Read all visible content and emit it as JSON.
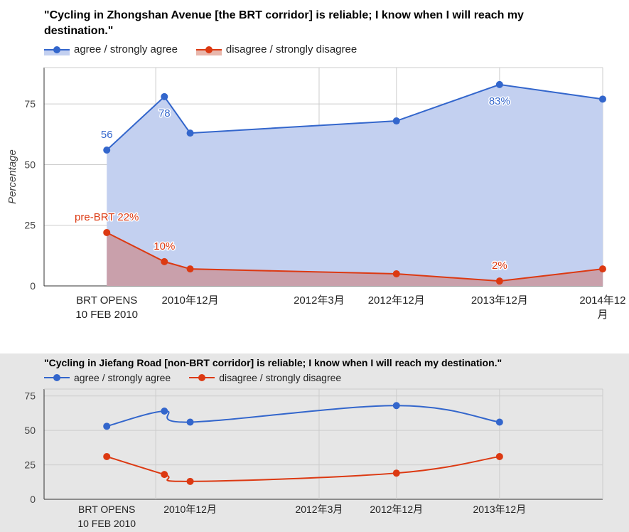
{
  "chart_data": [
    {
      "type": "area",
      "title": "\"Cycling in Zhongshan Avenue [the BRT corridor] is reliable; I know when I will reach my destination.\"",
      "ylabel": "Percentage",
      "ylim": [
        0,
        90
      ],
      "yticks": [
        0,
        25,
        50,
        75
      ],
      "x": [
        "2010-02-10",
        "2010-09",
        "2010-12",
        "2012-12",
        "2013-12",
        "2014-12"
      ],
      "xticks": [
        {
          "label": "BRT OPENS",
          "label2": "10 FEB 2010",
          "x": "2010-02-10"
        },
        {
          "label": "2010年12月",
          "label2": "",
          "x": "2010-12"
        },
        {
          "label": "2012年3月",
          "label2": "",
          "x": "2012-03"
        },
        {
          "label": "2012年12月",
          "label2": "",
          "x": "2012-12"
        },
        {
          "label": "2013年12月",
          "label2": "",
          "x": "2013-12"
        },
        {
          "label": "2014年12",
          "label2": "月",
          "x": "2014-12"
        }
      ],
      "series": [
        {
          "name": "agree / strongly agree",
          "color": "#3366cc",
          "fill": "#c3d0f0",
          "values": [
            56,
            78,
            63,
            68,
            83,
            77
          ],
          "labels": [
            "56",
            "78",
            "",
            "",
            "83%",
            ""
          ]
        },
        {
          "name": "disagree / strongly disagree",
          "color": "#dc3912",
          "fill": "#c9a0ab",
          "values": [
            22,
            10,
            7,
            5,
            2,
            7
          ],
          "labels": [
            "pre-BRT 22%",
            "10%",
            "",
            "",
            "2%",
            ""
          ]
        }
      ],
      "legend": "top",
      "grid": true
    },
    {
      "type": "line",
      "title": "\"Cycling in Jiefang Road [non-BRT corridor] is reliable; I know when I will reach my destination.\"",
      "ylabel": "",
      "ylim": [
        0,
        80
      ],
      "yticks": [
        0,
        25,
        50,
        75
      ],
      "x": [
        "2010-02-10",
        "2010-09",
        "2010-12",
        "2012-12",
        "2013-12"
      ],
      "xticks": [
        {
          "label": "BRT OPENS",
          "label2": "10 FEB 2010",
          "x": "2010-02-10"
        },
        {
          "label": "2010年12月",
          "label2": "",
          "x": "2010-12"
        },
        {
          "label": "2012年3月",
          "label2": "",
          "x": "2012-03"
        },
        {
          "label": "2012年12月",
          "label2": "",
          "x": "2012-12"
        },
        {
          "label": "2013年12月",
          "label2": "",
          "x": "2013-12"
        }
      ],
      "series": [
        {
          "name": "agree / strongly agree",
          "color": "#3366cc",
          "values": [
            53,
            64,
            56,
            68,
            56
          ]
        },
        {
          "name": "disagree / strongly disagree",
          "color": "#dc3912",
          "values": [
            31,
            18,
            13,
            19,
            31
          ]
        }
      ],
      "legend": "top",
      "grid": true
    }
  ]
}
